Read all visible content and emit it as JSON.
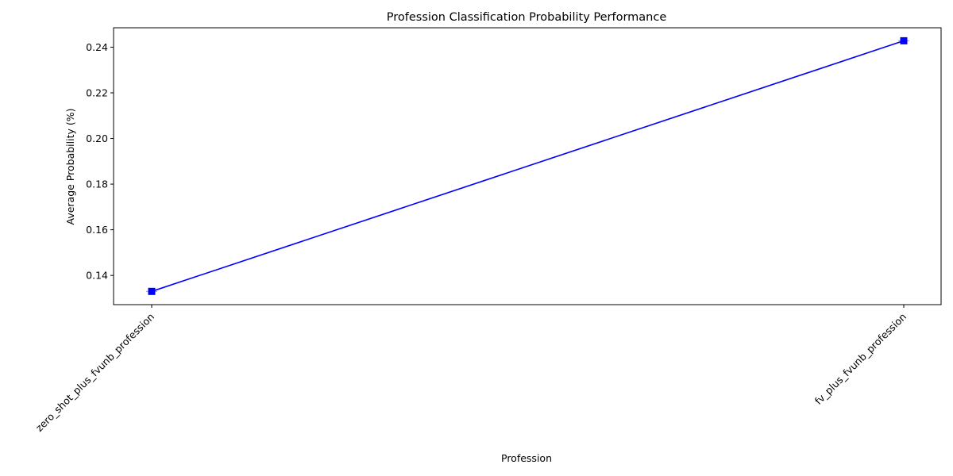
{
  "chart_data": {
    "type": "line",
    "title": "Profession Classification Probability Performance",
    "xlabel": "Profession",
    "ylabel": "Average Probability (%)",
    "categories": [
      "zero_shot_plus_fvunb_profession",
      "fv_plus_fvunb_profession"
    ],
    "series": [
      {
        "values": [
          0.133,
          0.2428
        ],
        "error": [
          0.0005,
          0.0005
        ],
        "color": "#0000ff",
        "error_color": "#ff69b4",
        "marker": "square"
      }
    ],
    "ylim": [
      0.1272,
      0.2485
    ],
    "yticks": [
      0.14,
      0.16,
      0.18,
      0.2,
      0.22,
      0.24
    ],
    "ytick_labels": [
      "0.14",
      "0.16",
      "0.18",
      "0.20",
      "0.22",
      "0.24"
    ],
    "grid": false,
    "legend": "none"
  }
}
